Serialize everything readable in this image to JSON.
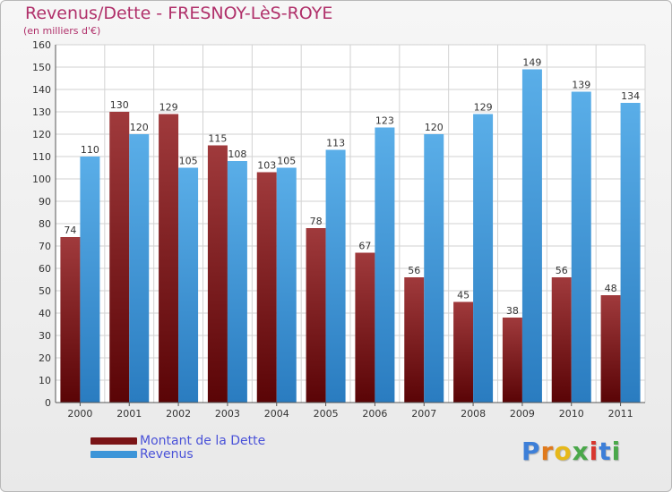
{
  "header": {
    "title": "Revenus/Dette - FRESNOY-LèS-ROYE",
    "subtitle": "(en milliers d'€)"
  },
  "chart_data": {
    "type": "bar",
    "title": "Revenus/Dette - FRESNOY-LèS-ROYE",
    "subtitle": "(en milliers d'€)",
    "xlabel": "",
    "ylabel": "",
    "ylim": [
      0,
      160
    ],
    "yticks": [
      0,
      10,
      20,
      30,
      40,
      50,
      60,
      70,
      80,
      90,
      100,
      110,
      120,
      130,
      140,
      150,
      160
    ],
    "grid": true,
    "legend_placement": "bottom-left",
    "categories": [
      "2000",
      "2001",
      "2002",
      "2003",
      "2004",
      "2005",
      "2006",
      "2007",
      "2008",
      "2009",
      "2010",
      "2011"
    ],
    "series": [
      {
        "name": "Montant de la Dette",
        "color": "#7a1416",
        "values": [
          74,
          130,
          129,
          115,
          103,
          78,
          67,
          56,
          45,
          38,
          56,
          48
        ]
      },
      {
        "name": "Revenus",
        "color": "#3d95d8",
        "values": [
          110,
          120,
          105,
          108,
          105,
          113,
          123,
          120,
          129,
          149,
          139,
          134
        ]
      }
    ]
  },
  "legend": {
    "items": [
      {
        "label": "Montant de la Dette",
        "color": "#7a1416"
      },
      {
        "label": "Revenus",
        "color": "#3d95d8"
      }
    ]
  },
  "logo": {
    "letters": [
      "P",
      "r",
      "o",
      "x",
      "i",
      "t",
      "i"
    ],
    "colors": [
      "#3d7fd8",
      "#e07a1c",
      "#e6b81a",
      "#4aa84a",
      "#d8372f",
      "#3d7fd8",
      "#4aa84a"
    ]
  }
}
